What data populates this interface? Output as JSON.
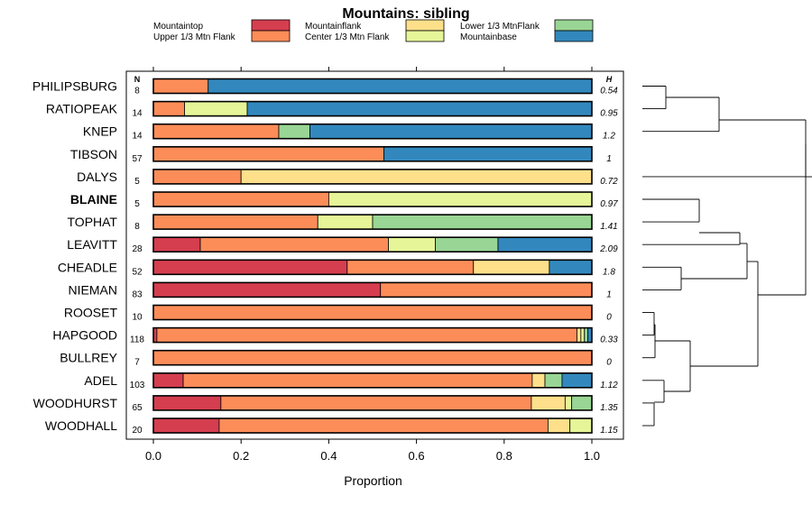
{
  "chart_data": {
    "type": "bar",
    "orientation": "horizontal",
    "stacked": true,
    "title": "Mountains: sibling",
    "xlabel": "Proportion",
    "xlim": [
      0,
      1
    ],
    "xticks": [
      "0.0",
      "0.2",
      "0.4",
      "0.6",
      "0.8",
      "1.0"
    ],
    "n_header": "N",
    "h_header": "H",
    "legend": [
      {
        "name": "Mountaintop",
        "color": "#d53e4f"
      },
      {
        "name": "Upper 1/3 Mtn Flank",
        "color": "#fc8d59"
      },
      {
        "name": "Mountainflank",
        "color": "#fee08b"
      },
      {
        "name": "Center 1/3 Mtn Flank",
        "color": "#e6f598"
      },
      {
        "name": "Lower 1/3 MtnFlank",
        "color": "#99d594"
      },
      {
        "name": "Mountainbase",
        "color": "#3288bd"
      }
    ],
    "categories": [
      "PHILIPSBURG",
      "RATIOPEAK",
      "KNEP",
      "TIBSON",
      "DALYS",
      "BLAINE",
      "TOPHAT",
      "LEAVITT",
      "CHEADLE",
      "NIEMAN",
      "ROOSET",
      "HAPGOOD",
      "BULLREY",
      "ADEL",
      "WOODHURST",
      "WOODHALL"
    ],
    "highlighted": "BLAINE",
    "n": [
      "8",
      "14",
      "14",
      "57",
      "5",
      "5",
      "8",
      "28",
      "52",
      "83",
      "10",
      "118",
      "7",
      "103",
      "65",
      "20"
    ],
    "h": [
      "0.54",
      "0.95",
      "1.2",
      "1",
      "0.72",
      "0.97",
      "1.41",
      "2.09",
      "1.8",
      "1",
      "0",
      "0.33",
      "0",
      "1.12",
      "1.35",
      "1.15"
    ],
    "series": [
      {
        "name": "Mountaintop",
        "values": [
          0,
          0,
          0,
          0,
          0,
          0,
          0,
          0.107,
          0.442,
          0.518,
          0,
          0.008,
          0,
          0.068,
          0.154,
          0.15
        ]
      },
      {
        "name": "Upper 1/3 Mtn Flank",
        "values": [
          0.125,
          0.071,
          0.286,
          0.526,
          0.2,
          0.4,
          0.375,
          0.429,
          0.288,
          0.482,
          1,
          0.958,
          1,
          0.796,
          0.708,
          0.75
        ]
      },
      {
        "name": "Mountainflank",
        "values": [
          0,
          0,
          0,
          0,
          0.8,
          0,
          0,
          0,
          0.173,
          0,
          0,
          0.009,
          0,
          0.029,
          0.077,
          0.05
        ]
      },
      {
        "name": "Center 1/3 Mtn Flank",
        "values": [
          0,
          0.143,
          0,
          0,
          0,
          0.6,
          0.125,
          0.107,
          0,
          0,
          0,
          0.008,
          0,
          0,
          0.015,
          0.05
        ]
      },
      {
        "name": "Lower 1/3 MtnFlank",
        "values": [
          0,
          0,
          0.071,
          0,
          0,
          0,
          0.5,
          0.143,
          0,
          0,
          0,
          0.008,
          0,
          0.039,
          0.046,
          0
        ]
      },
      {
        "name": "Mountainbase",
        "values": [
          0.875,
          0.786,
          0.643,
          0.474,
          0,
          0,
          0,
          0.214,
          0.097,
          0,
          0,
          0.009,
          0,
          0.068,
          0,
          0
        ]
      }
    ],
    "dendrogram": {
      "description": "hierarchical clustering of rows (leaf order matches categories)"
    }
  }
}
